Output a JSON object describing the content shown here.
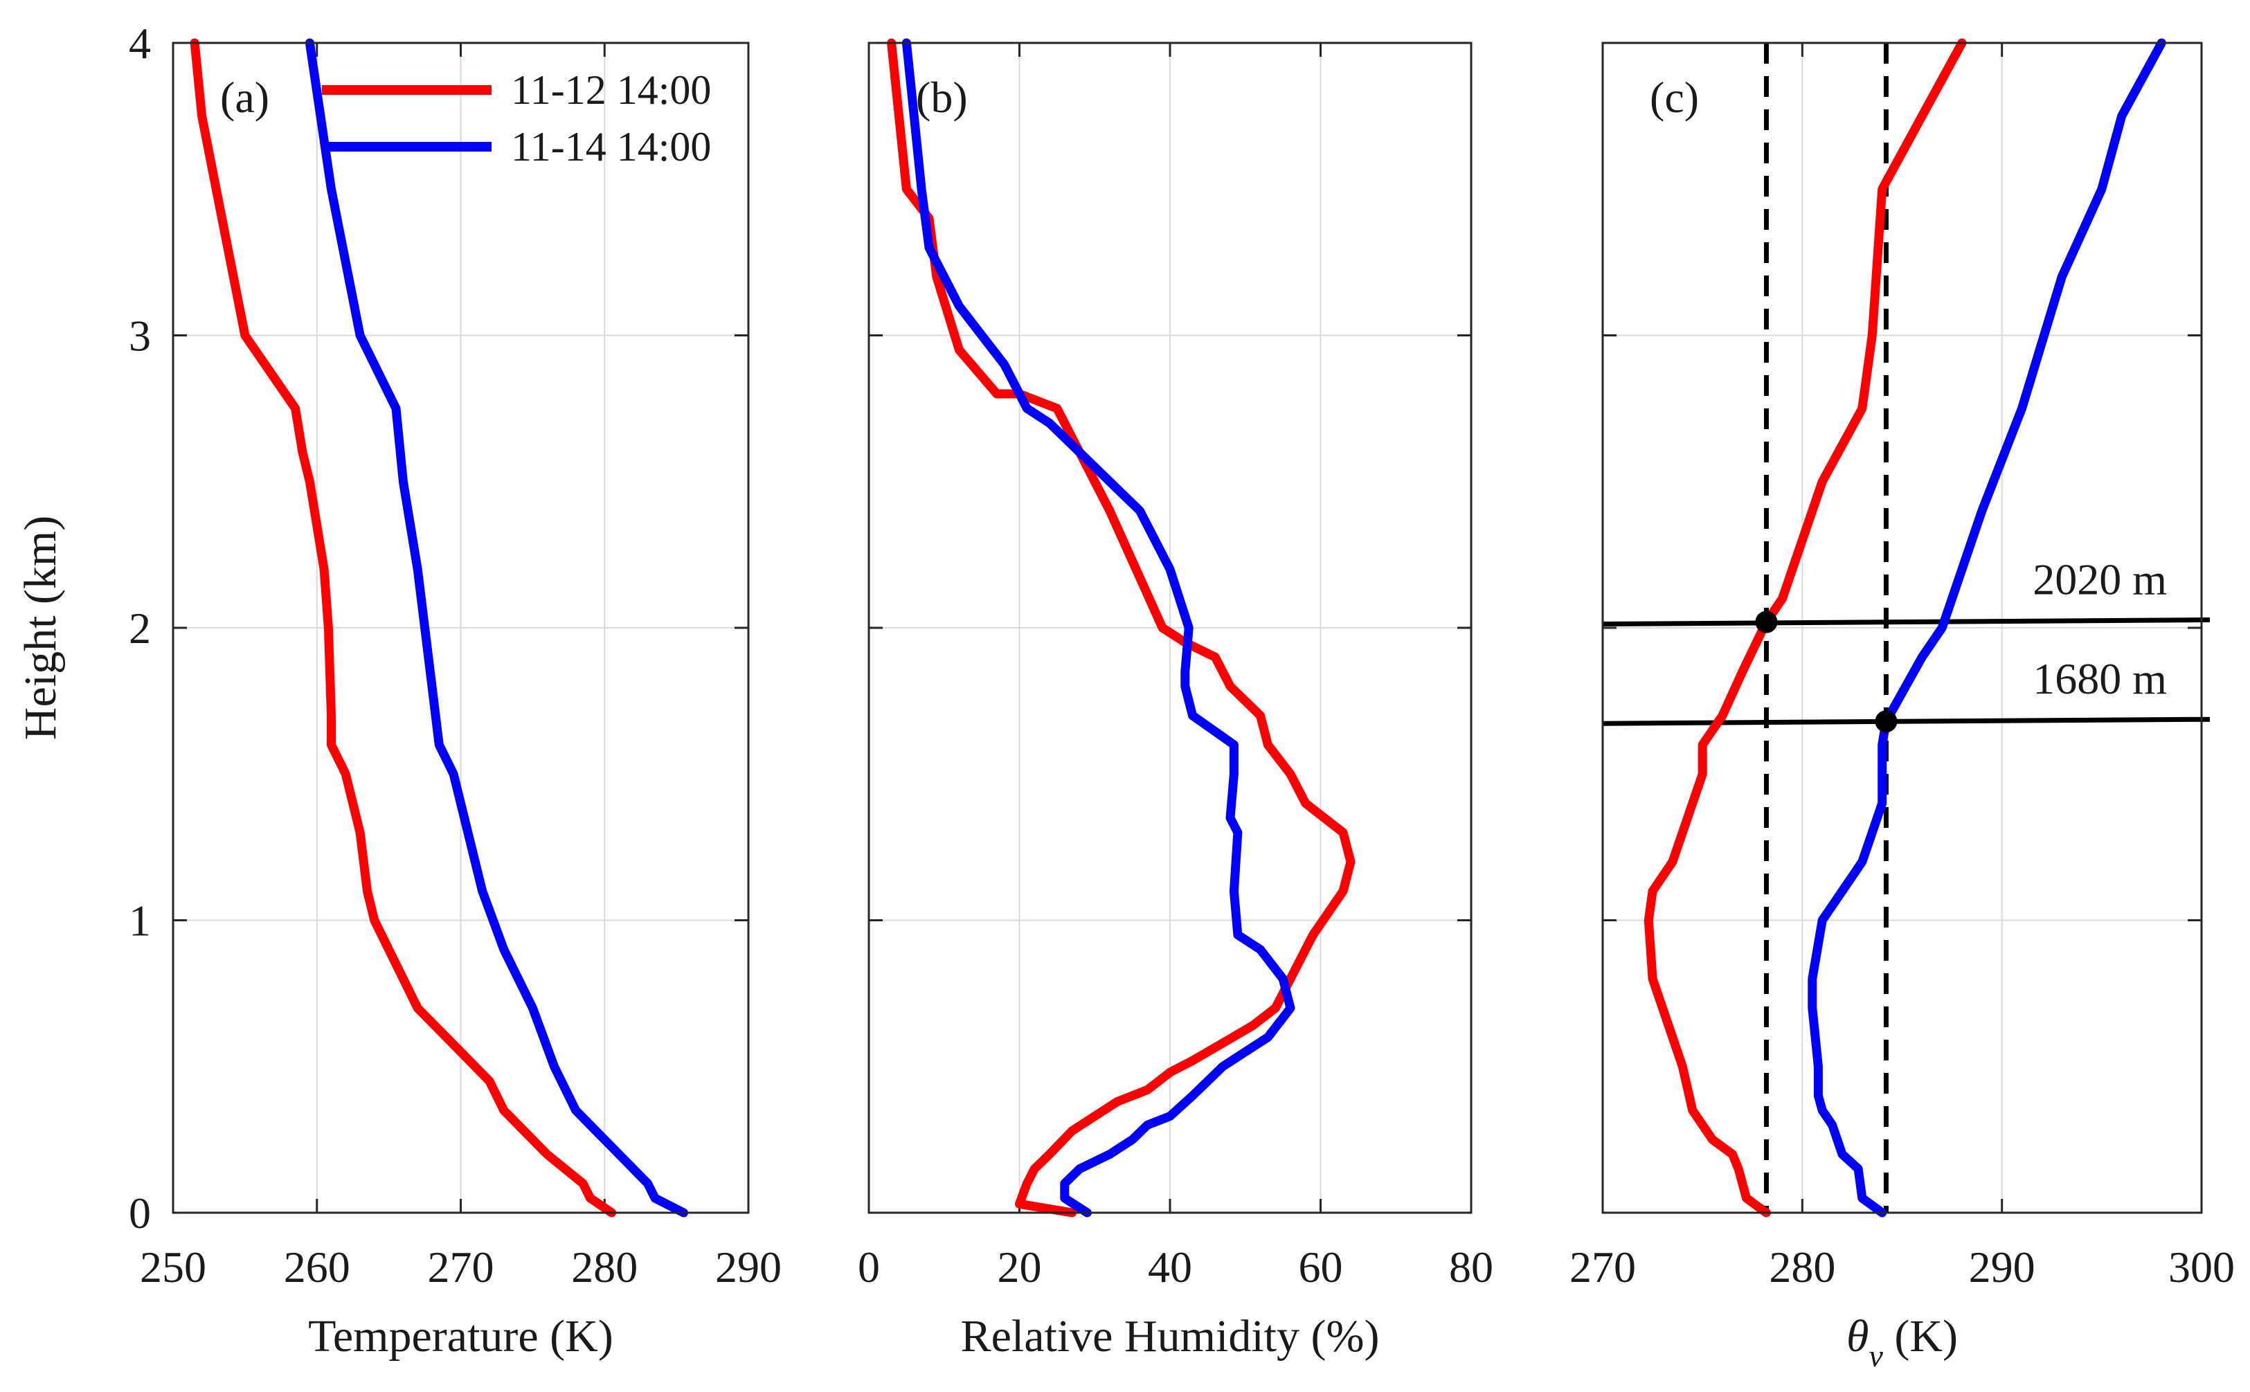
{
  "figure": {
    "y_axis_label": "Height (km)",
    "legend": [
      {
        "label": "11-12 14:00",
        "color": "#ff0000"
      },
      {
        "label": "11-14 14:00",
        "color": "#0000ff"
      }
    ]
  },
  "chart_data": [
    {
      "type": "line",
      "panel": "(a)",
      "xlabel": "Temperature (K)",
      "ylabel": "Height (km)",
      "xlim": [
        250,
        290
      ],
      "ylim": [
        0,
        4
      ],
      "xticks": [
        "250",
        "260",
        "270",
        "280",
        "290"
      ],
      "yticks": [
        "0",
        "1",
        "2",
        "3",
        "4"
      ],
      "grid": true,
      "legend_position": "top",
      "series": [
        {
          "name": "11-12 14:00",
          "color": "#ff0000",
          "points": [
            [
              280.5,
              0
            ],
            [
              279,
              0.05
            ],
            [
              278.5,
              0.1
            ],
            [
              276,
              0.2
            ],
            [
              275,
              0.25
            ],
            [
              274,
              0.3
            ],
            [
              273,
              0.35
            ],
            [
              272,
              0.45
            ],
            [
              270,
              0.55
            ],
            [
              267,
              0.7
            ],
            [
              265,
              0.9
            ],
            [
              264,
              1.0
            ],
            [
              263.5,
              1.1
            ],
            [
              263,
              1.3
            ],
            [
              262,
              1.5
            ],
            [
              261,
              1.6
            ],
            [
              261,
              1.7
            ],
            [
              260.8,
              2.0
            ],
            [
              260.5,
              2.2
            ],
            [
              259.5,
              2.5
            ],
            [
              259,
              2.6
            ],
            [
              258.5,
              2.75
            ],
            [
              255,
              3.0
            ],
            [
              253,
              3.5
            ],
            [
              252,
              3.75
            ],
            [
              251.5,
              4.0
            ]
          ]
        },
        {
          "name": "11-14 14:00",
          "color": "#0000ff",
          "points": [
            [
              285.5,
              0
            ],
            [
              283.5,
              0.05
            ],
            [
              283,
              0.1
            ],
            [
              281,
              0.2
            ],
            [
              279,
              0.3
            ],
            [
              278,
              0.35
            ],
            [
              276.5,
              0.5
            ],
            [
              275,
              0.7
            ],
            [
              273,
              0.9
            ],
            [
              271.5,
              1.1
            ],
            [
              270.5,
              1.3
            ],
            [
              269.5,
              1.5
            ],
            [
              268.5,
              1.6
            ],
            [
              268,
              1.8
            ],
            [
              267.5,
              2.0
            ],
            [
              267,
              2.2
            ],
            [
              266,
              2.5
            ],
            [
              265.5,
              2.75
            ],
            [
              263,
              3.0
            ],
            [
              261,
              3.5
            ],
            [
              259.5,
              4.0
            ]
          ]
        }
      ]
    },
    {
      "type": "line",
      "panel": "(b)",
      "xlabel": "Relative Humidity (%)",
      "ylabel": "Height (km)",
      "xlim": [
        0,
        80
      ],
      "ylim": [
        0,
        4
      ],
      "xticks": [
        "0",
        "20",
        "40",
        "60",
        "80"
      ],
      "yticks": [
        "0",
        "1",
        "2",
        "3",
        "4"
      ],
      "grid": true,
      "series": [
        {
          "name": "11-12 14:00",
          "color": "#ff0000",
          "points": [
            [
              27,
              0
            ],
            [
              20,
              0.03
            ],
            [
              21,
              0.1
            ],
            [
              22,
              0.15
            ],
            [
              24,
              0.2
            ],
            [
              27,
              0.28
            ],
            [
              30,
              0.33
            ],
            [
              33,
              0.38
            ],
            [
              37,
              0.42
            ],
            [
              40,
              0.48
            ],
            [
              43,
              0.52
            ],
            [
              47,
              0.58
            ],
            [
              51,
              0.64
            ],
            [
              54,
              0.7
            ],
            [
              56,
              0.8
            ],
            [
              59,
              0.95
            ],
            [
              63,
              1.1
            ],
            [
              64,
              1.2
            ],
            [
              63,
              1.3
            ],
            [
              58,
              1.4
            ],
            [
              56,
              1.5
            ],
            [
              53,
              1.6
            ],
            [
              52,
              1.7
            ],
            [
              48,
              1.8
            ],
            [
              46,
              1.9
            ],
            [
              42,
              1.95
            ],
            [
              39,
              2.0
            ],
            [
              32,
              2.4
            ],
            [
              28,
              2.6
            ],
            [
              25,
              2.75
            ],
            [
              20,
              2.8
            ],
            [
              17,
              2.8
            ],
            [
              12,
              2.95
            ],
            [
              9,
              3.2
            ],
            [
              8,
              3.4
            ],
            [
              5,
              3.5
            ],
            [
              4,
              3.75
            ],
            [
              3,
              4.0
            ]
          ]
        },
        {
          "name": "11-14 14:00",
          "color": "#0000ff",
          "points": [
            [
              29,
              0
            ],
            [
              26,
              0.05
            ],
            [
              26,
              0.1
            ],
            [
              28,
              0.15
            ],
            [
              32,
              0.2
            ],
            [
              35,
              0.25
            ],
            [
              37,
              0.3
            ],
            [
              40,
              0.33
            ],
            [
              43,
              0.4
            ],
            [
              45,
              0.45
            ],
            [
              47,
              0.5
            ],
            [
              50,
              0.55
            ],
            [
              53,
              0.6
            ],
            [
              56,
              0.7
            ],
            [
              55,
              0.8
            ],
            [
              52,
              0.9
            ],
            [
              49,
              0.95
            ],
            [
              48.5,
              1.1
            ],
            [
              49,
              1.3
            ],
            [
              48,
              1.35
            ],
            [
              48.5,
              1.5
            ],
            [
              48.5,
              1.6
            ],
            [
              43,
              1.7
            ],
            [
              42,
              1.8
            ],
            [
              42,
              1.85
            ],
            [
              42.5,
              2.0
            ],
            [
              40,
              2.2
            ],
            [
              36,
              2.4
            ],
            [
              32,
              2.5
            ],
            [
              28,
              2.6
            ],
            [
              24,
              2.7
            ],
            [
              21,
              2.75
            ],
            [
              18,
              2.9
            ],
            [
              15,
              3.0
            ],
            [
              12,
              3.1
            ],
            [
              10,
              3.2
            ],
            [
              8,
              3.3
            ],
            [
              7,
              3.5
            ],
            [
              6,
              3.75
            ],
            [
              5,
              4.0
            ]
          ]
        }
      ]
    },
    {
      "type": "line",
      "panel": "(c)",
      "xlabel": "θv (K)",
      "ylabel": "Height (km)",
      "xlim": [
        270,
        300
      ],
      "ylim": [
        0,
        4
      ],
      "xticks": [
        "270",
        "280",
        "290",
        "300"
      ],
      "yticks": [
        "0",
        "1",
        "2",
        "3",
        "4"
      ],
      "grid": true,
      "series": [
        {
          "name": "11-12 14:00",
          "color": "#ff0000",
          "points": [
            [
              278.2,
              0
            ],
            [
              277.2,
              0.05
            ],
            [
              276.8,
              0.15
            ],
            [
              276.5,
              0.2
            ],
            [
              275.5,
              0.25
            ],
            [
              275,
              0.3
            ],
            [
              274.5,
              0.35
            ],
            [
              274,
              0.5
            ],
            [
              273.5,
              0.6
            ],
            [
              273,
              0.7
            ],
            [
              272.5,
              0.8
            ],
            [
              272.3,
              1.0
            ],
            [
              272.5,
              1.1
            ],
            [
              273.5,
              1.2
            ],
            [
              274,
              1.3
            ],
            [
              275,
              1.5
            ],
            [
              275,
              1.6
            ],
            [
              276,
              1.7
            ],
            [
              277,
              1.85
            ],
            [
              278.2,
              2.02
            ],
            [
              279,
              2.1
            ],
            [
              281,
              2.5
            ],
            [
              283,
              2.75
            ],
            [
              283.5,
              3.0
            ],
            [
              284,
              3.5
            ],
            [
              286,
              3.75
            ],
            [
              288,
              4.0
            ]
          ]
        },
        {
          "name": "11-14 14:00",
          "color": "#0000ff",
          "points": [
            [
              284,
              0
            ],
            [
              283,
              0.05
            ],
            [
              282.8,
              0.15
            ],
            [
              282,
              0.2
            ],
            [
              281.5,
              0.3
            ],
            [
              281,
              0.35
            ],
            [
              280.8,
              0.4
            ],
            [
              280.8,
              0.5
            ],
            [
              280.5,
              0.7
            ],
            [
              280.5,
              0.8
            ],
            [
              281,
              1.0
            ],
            [
              282,
              1.1
            ],
            [
              283,
              1.2
            ],
            [
              284,
              1.4
            ],
            [
              284,
              1.5
            ],
            [
              284,
              1.6
            ],
            [
              284.2,
              1.68
            ],
            [
              286,
              1.9
            ],
            [
              287,
              2.0
            ],
            [
              289,
              2.4
            ],
            [
              291,
              2.75
            ],
            [
              293,
              3.2
            ],
            [
              295,
              3.5
            ],
            [
              296,
              3.75
            ],
            [
              298,
              4.0
            ]
          ]
        }
      ],
      "vlines": [
        {
          "x": 278.2,
          "style": "dashed"
        },
        {
          "x": 284.2,
          "style": "dashed"
        }
      ],
      "hlines": [
        {
          "y": 2.02,
          "label": "2020 m"
        },
        {
          "y": 1.68,
          "label": "1680 m"
        }
      ],
      "markers": [
        {
          "x": 278.2,
          "y": 2.02
        },
        {
          "x": 284.2,
          "y": 1.68
        }
      ]
    }
  ]
}
